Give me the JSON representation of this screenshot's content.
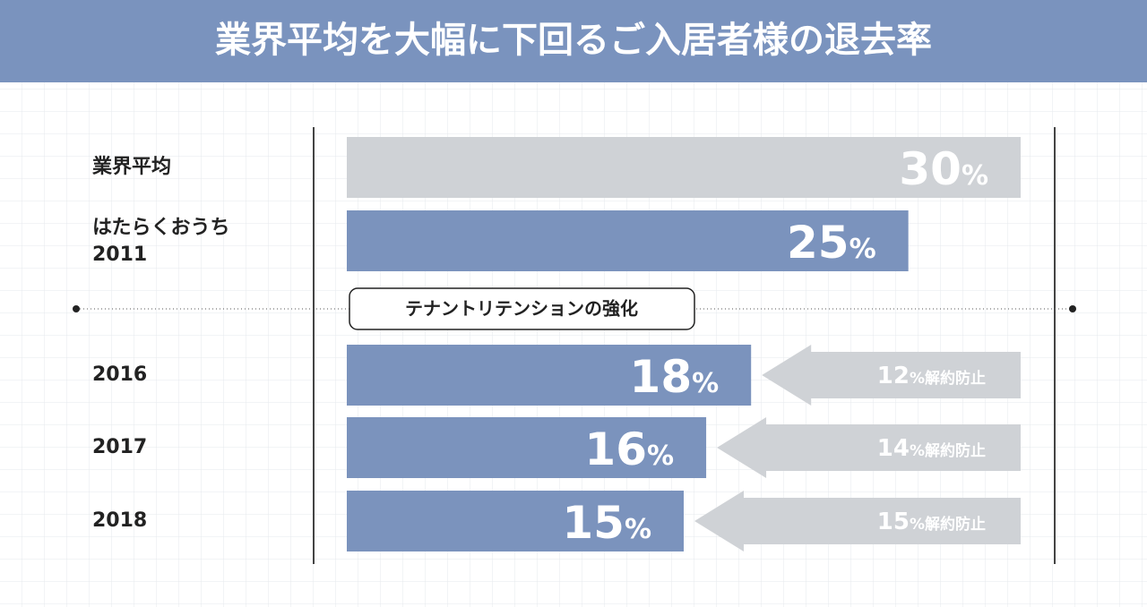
{
  "chart_data": {
    "type": "bar",
    "orientation": "horizontal",
    "title": "業界平均を大幅に下回るご入居者様の退去率",
    "categories": [
      "業界平均",
      "はたらくおうち\n2011",
      "2016",
      "2017",
      "2018"
    ],
    "values": [
      30,
      25,
      18,
      16,
      15
    ],
    "value_labels": [
      "30%",
      "25%",
      "18%",
      "16%",
      "15%"
    ],
    "colors": [
      "#cfd2d6",
      "#7b93bd",
      "#7b93bd",
      "#7b93bd",
      "#7b93bd"
    ],
    "xlim": [
      0,
      30
    ],
    "annotation": "テナントリテンションの強化",
    "reductions": {
      "values": [
        12,
        14,
        15
      ],
      "value_labels": [
        "12%解約防止",
        "14%解約防止",
        "15%解約防止"
      ],
      "color": "#cfd2d6"
    }
  }
}
